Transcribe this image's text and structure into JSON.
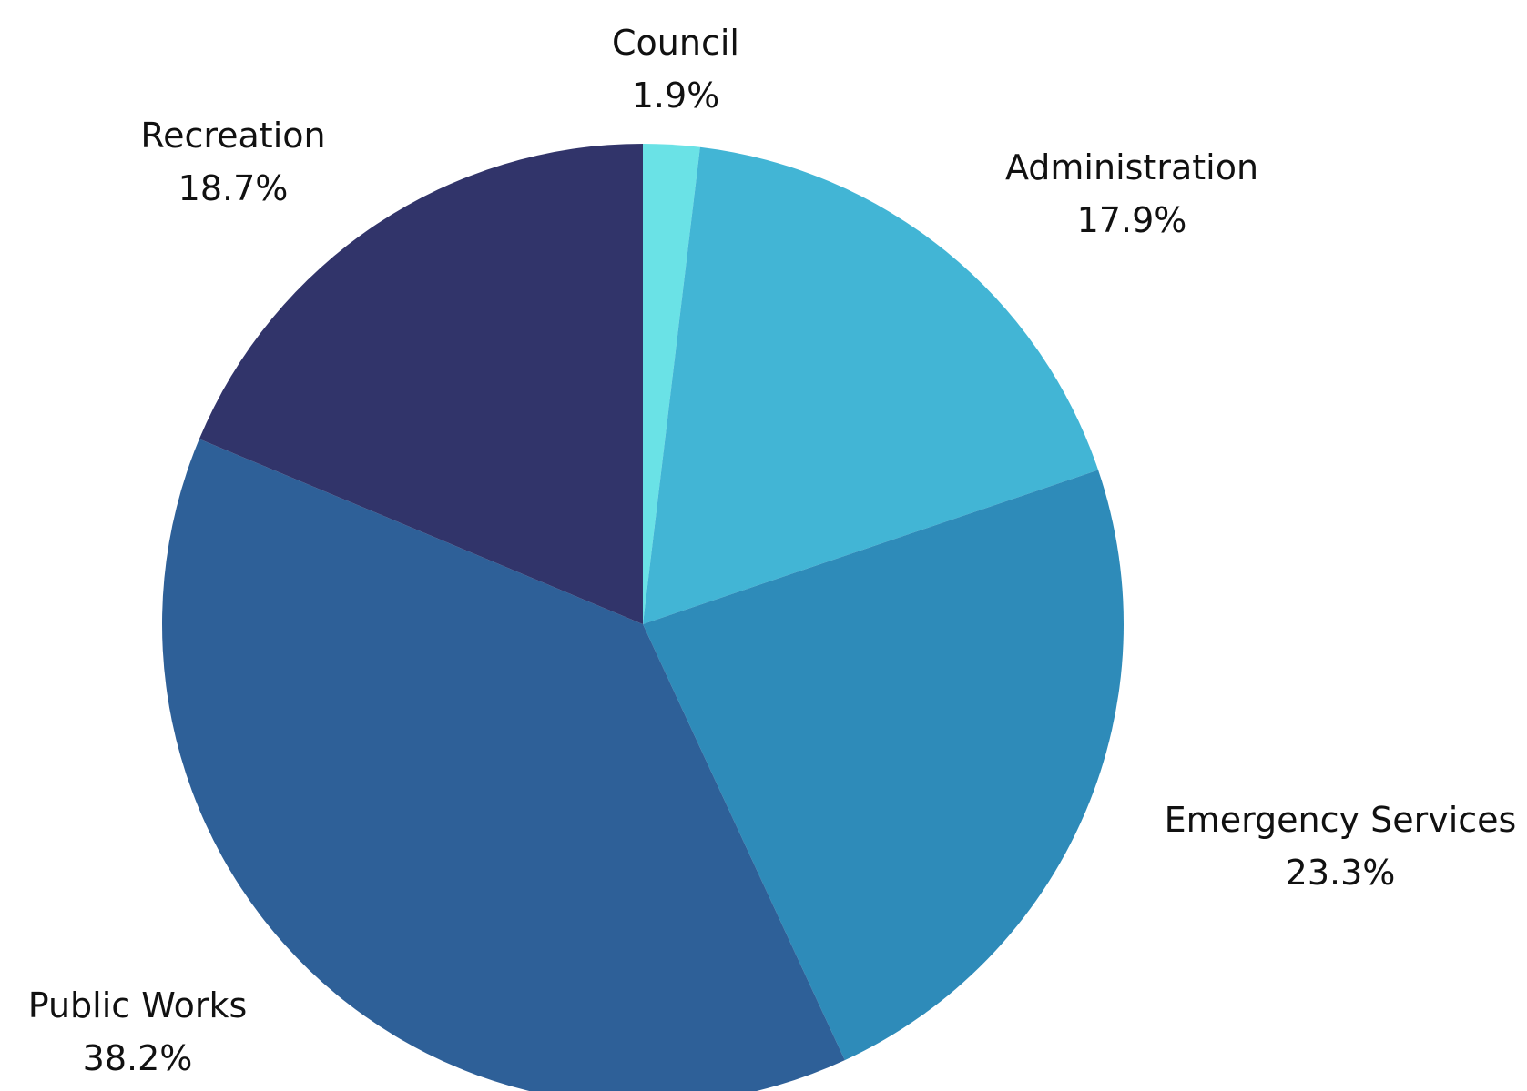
{
  "chart_data": {
    "type": "pie",
    "title": "",
    "slices": [
      {
        "label": "Council",
        "value": 1.9,
        "percent_label": "1.9%",
        "color": "#6ae2e6"
      },
      {
        "label": "Administration",
        "value": 17.9,
        "percent_label": "17.9%",
        "color": "#42b5d5"
      },
      {
        "label": "Emergency Services",
        "value": 23.3,
        "percent_label": "23.3%",
        "color": "#2e8bb9"
      },
      {
        "label": "Public Works",
        "value": 38.2,
        "percent_label": "38.2%",
        "color": "#2e6098"
      },
      {
        "label": "Recreation",
        "value": 18.7,
        "percent_label": "18.7%",
        "color": "#31346a"
      }
    ],
    "start_angle": "12 o'clock",
    "direction": "clockwise",
    "legend": "none",
    "labels_position": "outside"
  }
}
